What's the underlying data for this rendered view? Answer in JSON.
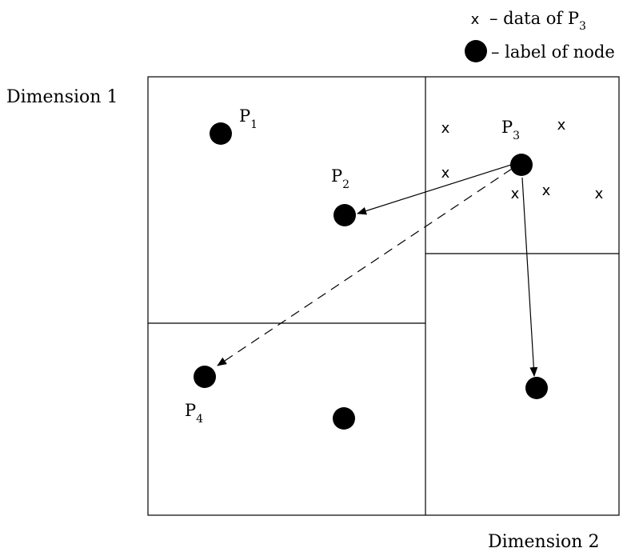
{
  "axes": {
    "vertical_label": "Dimension 1",
    "horizontal_label": "Dimension 2"
  },
  "legend": {
    "data_marker": "x",
    "data_text_prefix": "– data of P",
    "data_text_sub": "3",
    "node_text": "– label of node"
  },
  "points": [
    {
      "id": "p1",
      "name": "P",
      "sub": "1"
    },
    {
      "id": "p2",
      "name": "P",
      "sub": "2"
    },
    {
      "id": "p3",
      "name": "P",
      "sub": "3"
    },
    {
      "id": "p4",
      "name": "P",
      "sub": "4"
    }
  ],
  "data_marker_count": 6,
  "data_marker_glyph": "x",
  "colors": {
    "stroke": "#000000",
    "node": "#000000",
    "background": "#ffffff"
  }
}
